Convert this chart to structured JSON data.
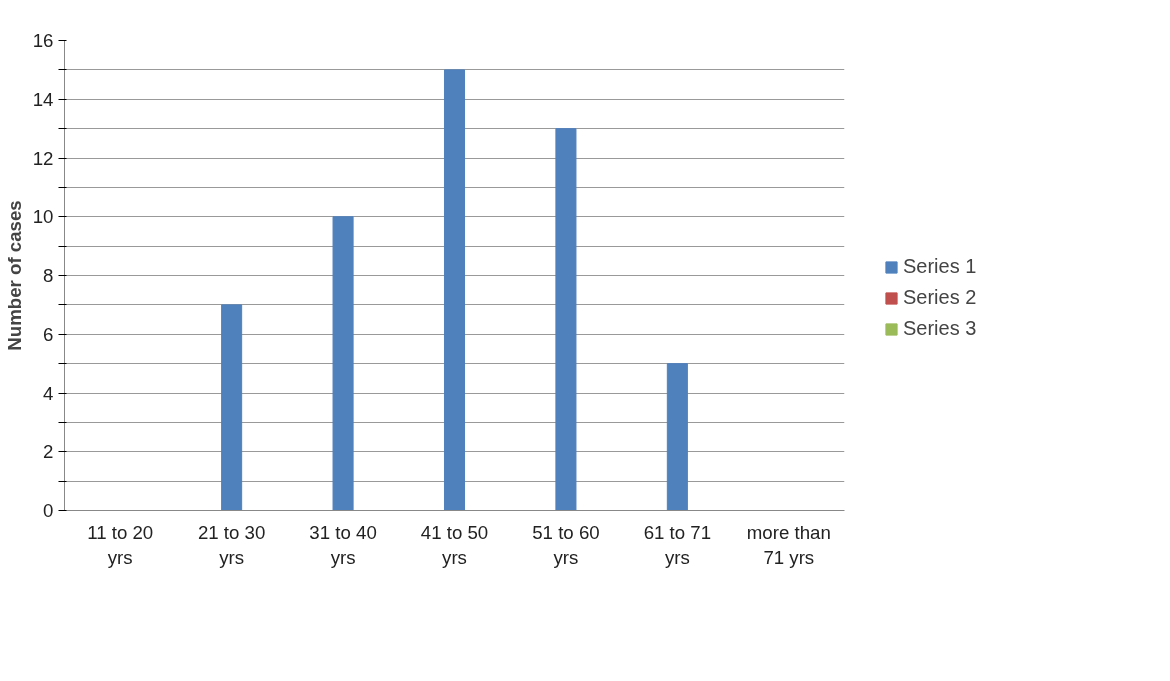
{
  "chart_data": {
    "type": "bar",
    "ylabel": "Number of cases",
    "categories": [
      "11 to 20 yrs",
      "21 to 30 yrs",
      "31 to 40 yrs",
      "41 to 50 yrs",
      "51 to 60 yrs",
      "61 to 71 yrs",
      "more than 71 yrs"
    ],
    "series": [
      {
        "name": "Series 1",
        "color": "#4f81bd",
        "values": [
          0,
          7,
          10,
          15,
          13,
          5,
          0
        ]
      },
      {
        "name": "Series 2",
        "color": "#c0504d",
        "values": [
          null,
          null,
          null,
          null,
          null,
          null,
          null
        ]
      },
      {
        "name": "Series 3",
        "color": "#9bbb59",
        "values": [
          null,
          null,
          null,
          null,
          null,
          null,
          null
        ]
      }
    ],
    "ylim": [
      0,
      16
    ],
    "yticks": [
      0,
      {
        "value": 1,
        "label": null
      },
      2,
      {
        "value": 3,
        "label": null
      },
      4,
      {
        "value": 5,
        "label": null
      },
      6,
      {
        "value": 7,
        "label": null
      },
      8,
      {
        "value": 9,
        "label": null
      },
      10,
      {
        "value": 11,
        "label": null
      },
      12,
      {
        "value": 13,
        "label": null
      },
      14,
      {
        "value": 15,
        "label": null
      },
      16
    ],
    "grid": "y",
    "legend": "right"
  }
}
